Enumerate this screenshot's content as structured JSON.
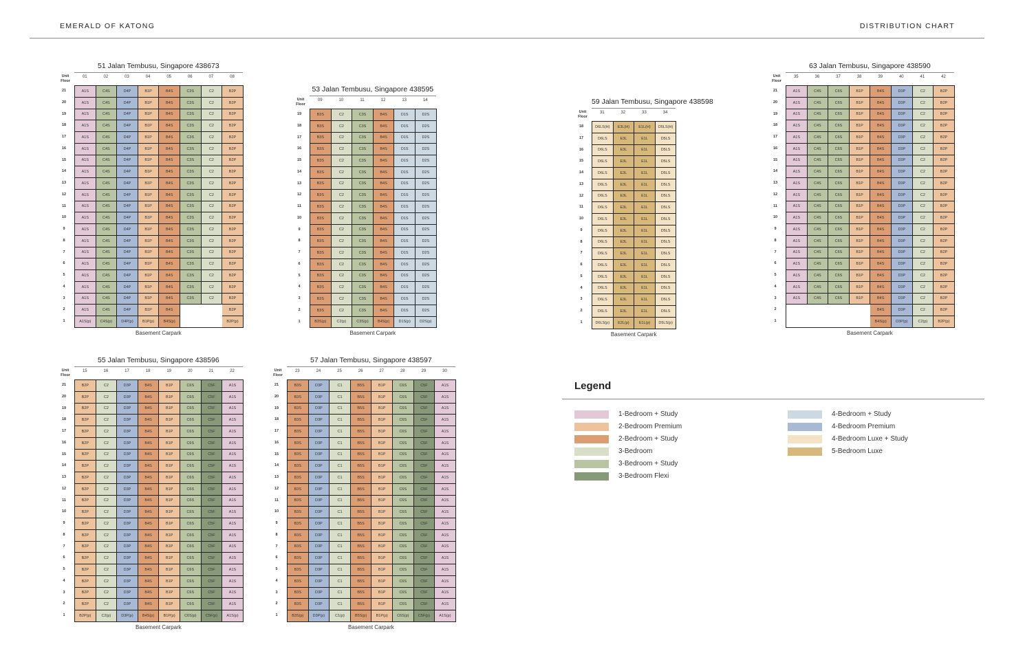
{
  "header": {
    "left": "EMERALD OF KATONG",
    "right": "DISTRIBUTION CHART"
  },
  "colors": {
    "A1S": "#e3c9d7",
    "B2P": "#ecc39c",
    "B3S": "#dd9d72",
    "C2": "#d8dec8",
    "C3S": "#b9c4a2",
    "C5F": "#88997a",
    "D1S": "#ccd8e2",
    "D4P": "#a8b9d6",
    "D5LS": "#f3e2c4",
    "E1L": "#d7b77a",
    "C4S": "#b9c4a2",
    "C6S": "#b9c4a2",
    "C1": "#d8dec8",
    "B1P": "#ecc39c",
    "B4S": "#dd9d72",
    "B5S": "#dd9d72",
    "B2S": "#dd9d72",
    "D3P": "#a8b9d6",
    "D2S": "#ccd8e2",
    "D6LS": "#f3e2c4",
    "E3L": "#d7b77a",
    "E2L": "#d7b77a"
  },
  "labels": {
    "unit": "Unit",
    "floor": "Floor",
    "basement": "Basement Carpark"
  },
  "blocks": [
    {
      "title": "51 Jalan Tembusu, Singapore 438673",
      "units": [
        "01",
        "02",
        "03",
        "04",
        "05",
        "06",
        "07",
        "08"
      ],
      "types": [
        "A1S",
        "C4S",
        "D4P",
        "B1P",
        "B4S",
        "C3S",
        "C2",
        "B2P"
      ],
      "floors": [
        "21",
        "20",
        "19",
        "18",
        "17",
        "16",
        "15",
        "14",
        "13",
        "12",
        "11",
        "10",
        "9",
        "8",
        "7",
        "6",
        "5",
        "4",
        "3",
        "2",
        "1"
      ],
      "floor2": [
        "A1S",
        "C4S",
        "D4P",
        "B1P",
        "B4S",
        "",
        "",
        "B2P"
      ],
      "floor1": [
        "A1S(p)",
        "C4S(p)",
        "D4P(p)",
        "B1P(p)",
        "B4S(p)",
        "",
        "",
        "B2P(p)"
      ],
      "basement": "Basement Carpark"
    },
    {
      "title": "53 Jalan Tembusu, Singapore 438595",
      "units": [
        "09",
        "10",
        "11",
        "12",
        "13",
        "14"
      ],
      "types": [
        "B3S",
        "C2",
        "C3S",
        "B4S",
        "D1S",
        "D2S"
      ],
      "floors": [
        "19",
        "18",
        "17",
        "16",
        "15",
        "14",
        "13",
        "12",
        "11",
        "10",
        "9",
        "8",
        "7",
        "6",
        "5",
        "4",
        "3",
        "2",
        "1"
      ],
      "floor1": [
        "B3S(p)",
        "C2(p)",
        "C3S(p)",
        "B4S(p)",
        "D1S(p)",
        "D2S(p)"
      ],
      "basement": "Basement Carpark"
    },
    {
      "title": "59 Jalan Tembusu, Singapore 438598",
      "units": [
        "31",
        "32",
        "33",
        "34"
      ],
      "types": [
        "D6LS",
        "E3L",
        "E1L",
        "D5LS"
      ],
      "floors": [
        "18",
        "17",
        "16",
        "15",
        "14",
        "13",
        "12",
        "11",
        "10",
        "9",
        "8",
        "7",
        "6",
        "5",
        "4",
        "3",
        "2",
        "1"
      ],
      "top_row": [
        "D6LS(H)",
        "E3L(H)",
        "E1L(H)",
        "D5LS(H)"
      ],
      "floor1": [
        "D6LS(p)",
        "E2L(p)",
        "E1L(p)",
        "D5LS(p)"
      ],
      "basement": "Basement Carpark"
    },
    {
      "title": "63 Jalan Tembusu, Singapore 438590",
      "units": [
        "35",
        "36",
        "37",
        "38",
        "39",
        "40",
        "41",
        "42"
      ],
      "types": [
        "A1S",
        "C4S",
        "C6S",
        "B1P",
        "B4S",
        "D3P",
        "C2",
        "B2P"
      ],
      "floors": [
        "21",
        "20",
        "19",
        "18",
        "17",
        "16",
        "15",
        "14",
        "13",
        "12",
        "11",
        "10",
        "9",
        "8",
        "7",
        "6",
        "5",
        "4",
        "3",
        "2",
        "1"
      ],
      "floor2": [
        "",
        "",
        "",
        "",
        "B4S",
        "D3P",
        "C2",
        "B2P"
      ],
      "floor1": [
        "",
        "",
        "",
        "",
        "B4S(p)",
        "D3P(p)",
        "C2(p)",
        "B2P(p)"
      ],
      "basement": "Basement Carpark"
    },
    {
      "title": "55 Jalan Tembusu, Singapore 438596",
      "units": [
        "15",
        "16",
        "17",
        "18",
        "19",
        "20",
        "21",
        "22"
      ],
      "types": [
        "B2P",
        "C2",
        "D3P",
        "B4S",
        "B1P",
        "C6S",
        "C5F",
        "A1S"
      ],
      "floors": [
        "21",
        "20",
        "19",
        "18",
        "17",
        "16",
        "15",
        "14",
        "13",
        "12",
        "11",
        "10",
        "9",
        "8",
        "7",
        "6",
        "5",
        "4",
        "3",
        "2",
        "1"
      ],
      "floor1": [
        "B2P(p)",
        "C2(p)",
        "D3P(p)",
        "B4S(p)",
        "B1P(p)",
        "C6S(p)",
        "C5F(p)",
        "A1S(p)"
      ],
      "basement": "Basement Carpark"
    },
    {
      "title": "57 Jalan Tembusu, Singapore 438597",
      "units": [
        "23",
        "24",
        "25",
        "26",
        "27",
        "28",
        "29",
        "30"
      ],
      "types": [
        "B3S",
        "D3P",
        "C1",
        "B5S",
        "B1P",
        "C6S",
        "C5F",
        "A1S"
      ],
      "floors": [
        "21",
        "20",
        "19",
        "18",
        "17",
        "16",
        "15",
        "14",
        "13",
        "12",
        "11",
        "10",
        "9",
        "8",
        "7",
        "6",
        "5",
        "4",
        "3",
        "2",
        "1"
      ],
      "floor1": [
        "B3S(p)",
        "D3P(p)",
        "C1(p)",
        "B5S(p)",
        "B1P(p)",
        "C6S(p)",
        "C5F(p)",
        "A1S(p)"
      ],
      "basement": "Basement Carpark"
    }
  ],
  "legend": {
    "title": "Legend",
    "items": [
      {
        "label": "1-Bedroom + Study",
        "color": "#e3c9d7"
      },
      {
        "label": "2-Bedroom Premium",
        "color": "#ecc39c"
      },
      {
        "label": "2-Bedroom + Study",
        "color": "#dd9d72"
      },
      {
        "label": "3-Bedroom",
        "color": "#d8dec8"
      },
      {
        "label": "3-Bedroom + Study",
        "color": "#b9c4a2"
      },
      {
        "label": "3-Bedroom Flexi",
        "color": "#88997a"
      },
      {
        "label": "4-Bedroom + Study",
        "color": "#ccd8e2"
      },
      {
        "label": "4-Bedroom Premium",
        "color": "#a8b9d6"
      },
      {
        "label": "4-Bedroom Luxe + Study",
        "color": "#f3e2c4"
      },
      {
        "label": "5-Bedroom Luxe",
        "color": "#d7b77a"
      }
    ]
  }
}
